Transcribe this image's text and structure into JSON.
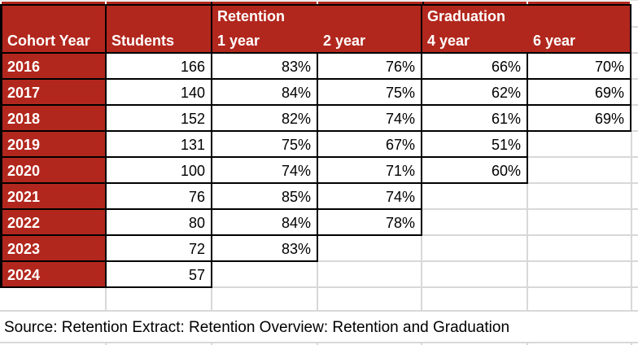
{
  "table": {
    "group_headers": {
      "retention": "Retention",
      "graduation": "Graduation"
    },
    "columns": {
      "cohort_year": "Cohort Year",
      "students": "Students",
      "retention_1yr": "1 year",
      "retention_2yr": "2 year",
      "graduation_4yr": "4 year",
      "graduation_6yr": "6 year"
    },
    "rows": [
      {
        "year": "2016",
        "students": "166",
        "retention_1yr": "83%",
        "retention_2yr": "76%",
        "graduation_4yr": "66%",
        "graduation_6yr": "70%"
      },
      {
        "year": "2017",
        "students": "140",
        "retention_1yr": "84%",
        "retention_2yr": "75%",
        "graduation_4yr": "62%",
        "graduation_6yr": "69%"
      },
      {
        "year": "2018",
        "students": "152",
        "retention_1yr": "82%",
        "retention_2yr": "74%",
        "graduation_4yr": "61%",
        "graduation_6yr": "69%"
      },
      {
        "year": "2019",
        "students": "131",
        "retention_1yr": "75%",
        "retention_2yr": "67%",
        "graduation_4yr": "51%",
        "graduation_6yr": ""
      },
      {
        "year": "2020",
        "students": "100",
        "retention_1yr": "74%",
        "retention_2yr": "71%",
        "graduation_4yr": "60%",
        "graduation_6yr": ""
      },
      {
        "year": "2021",
        "students": "76",
        "retention_1yr": "85%",
        "retention_2yr": "74%",
        "graduation_4yr": "",
        "graduation_6yr": ""
      },
      {
        "year": "2022",
        "students": "80",
        "retention_1yr": "84%",
        "retention_2yr": "78%",
        "graduation_4yr": "",
        "graduation_6yr": ""
      },
      {
        "year": "2023",
        "students": "72",
        "retention_1yr": "83%",
        "retention_2yr": "",
        "graduation_4yr": "",
        "graduation_6yr": ""
      },
      {
        "year": "2024",
        "students": "57",
        "retention_1yr": "",
        "retention_2yr": "",
        "graduation_4yr": "",
        "graduation_6yr": ""
      }
    ],
    "source_note": "Source: Retention Extract: Retention Overview: Retention and Graduation"
  },
  "colors": {
    "header_red": "#b2271d",
    "border_black": "#000000",
    "grid_gray": "#d8d8d8",
    "header_text": "#ffffff",
    "data_text": "#000000"
  }
}
